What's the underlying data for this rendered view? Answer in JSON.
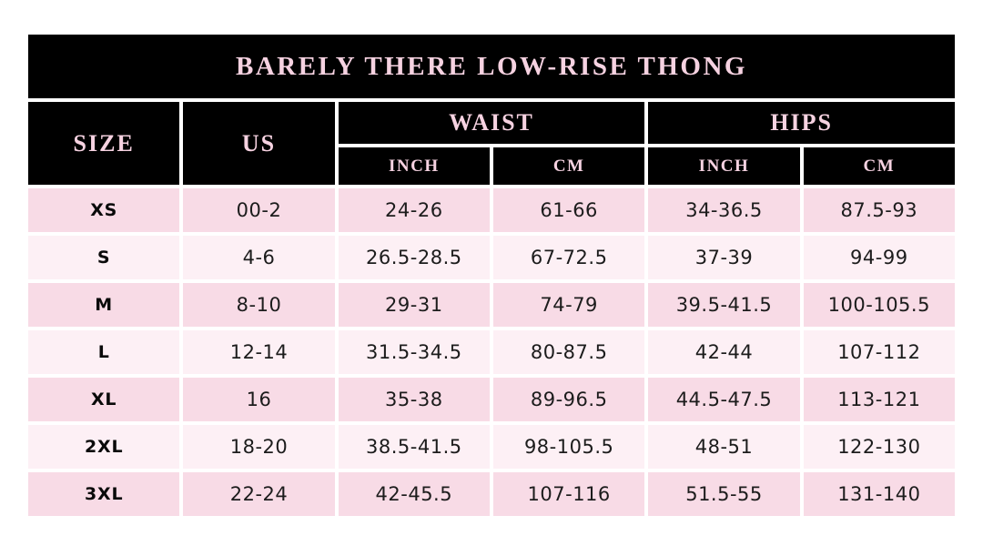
{
  "header": {
    "size": "SIZE",
    "us": "US",
    "waist": "WAIST",
    "hips": "HIPS",
    "inch": "INCH",
    "cm": "CM"
  },
  "colors": {
    "background": "#ffffff",
    "bar_black": "#000000",
    "header_text": "#f6d2e1",
    "row_pink": "#f8dbe6",
    "row_light": "#fdf0f5",
    "value_text": "#1c1c1c",
    "label_text": "#0a0a0a"
  },
  "chart_data": {
    "type": "table",
    "title": "BARELY THERE LOW-RISE THONG",
    "column_groups": [
      {
        "label": "WAIST",
        "columns": [
          "INCH",
          "CM"
        ]
      },
      {
        "label": "HIPS",
        "columns": [
          "INCH",
          "CM"
        ]
      }
    ],
    "columns": [
      "SIZE",
      "US",
      "WAIST INCH",
      "WAIST CM",
      "HIPS INCH",
      "HIPS CM"
    ],
    "rows": [
      [
        "XS",
        "00-2",
        "24-26",
        "61-66",
        "34-36.5",
        "87.5-93"
      ],
      [
        "S",
        "4-6",
        "26.5-28.5",
        "67-72.5",
        "37-39",
        "94-99"
      ],
      [
        "M",
        "8-10",
        "29-31",
        "74-79",
        "39.5-41.5",
        "100-105.5"
      ],
      [
        "L",
        "12-14",
        "31.5-34.5",
        "80-87.5",
        "42-44",
        "107-112"
      ],
      [
        "XL",
        "16",
        "35-38",
        "89-96.5",
        "44.5-47.5",
        "113-121"
      ],
      [
        "2XL",
        "18-20",
        "38.5-41.5",
        "98-105.5",
        "48-51",
        "122-130"
      ],
      [
        "3XL",
        "22-24",
        "42-45.5",
        "107-116",
        "51.5-55",
        "131-140"
      ]
    ],
    "layout": {
      "row_striping": [
        "row_pink",
        "row_light"
      ],
      "header_background": "bar_black"
    }
  }
}
